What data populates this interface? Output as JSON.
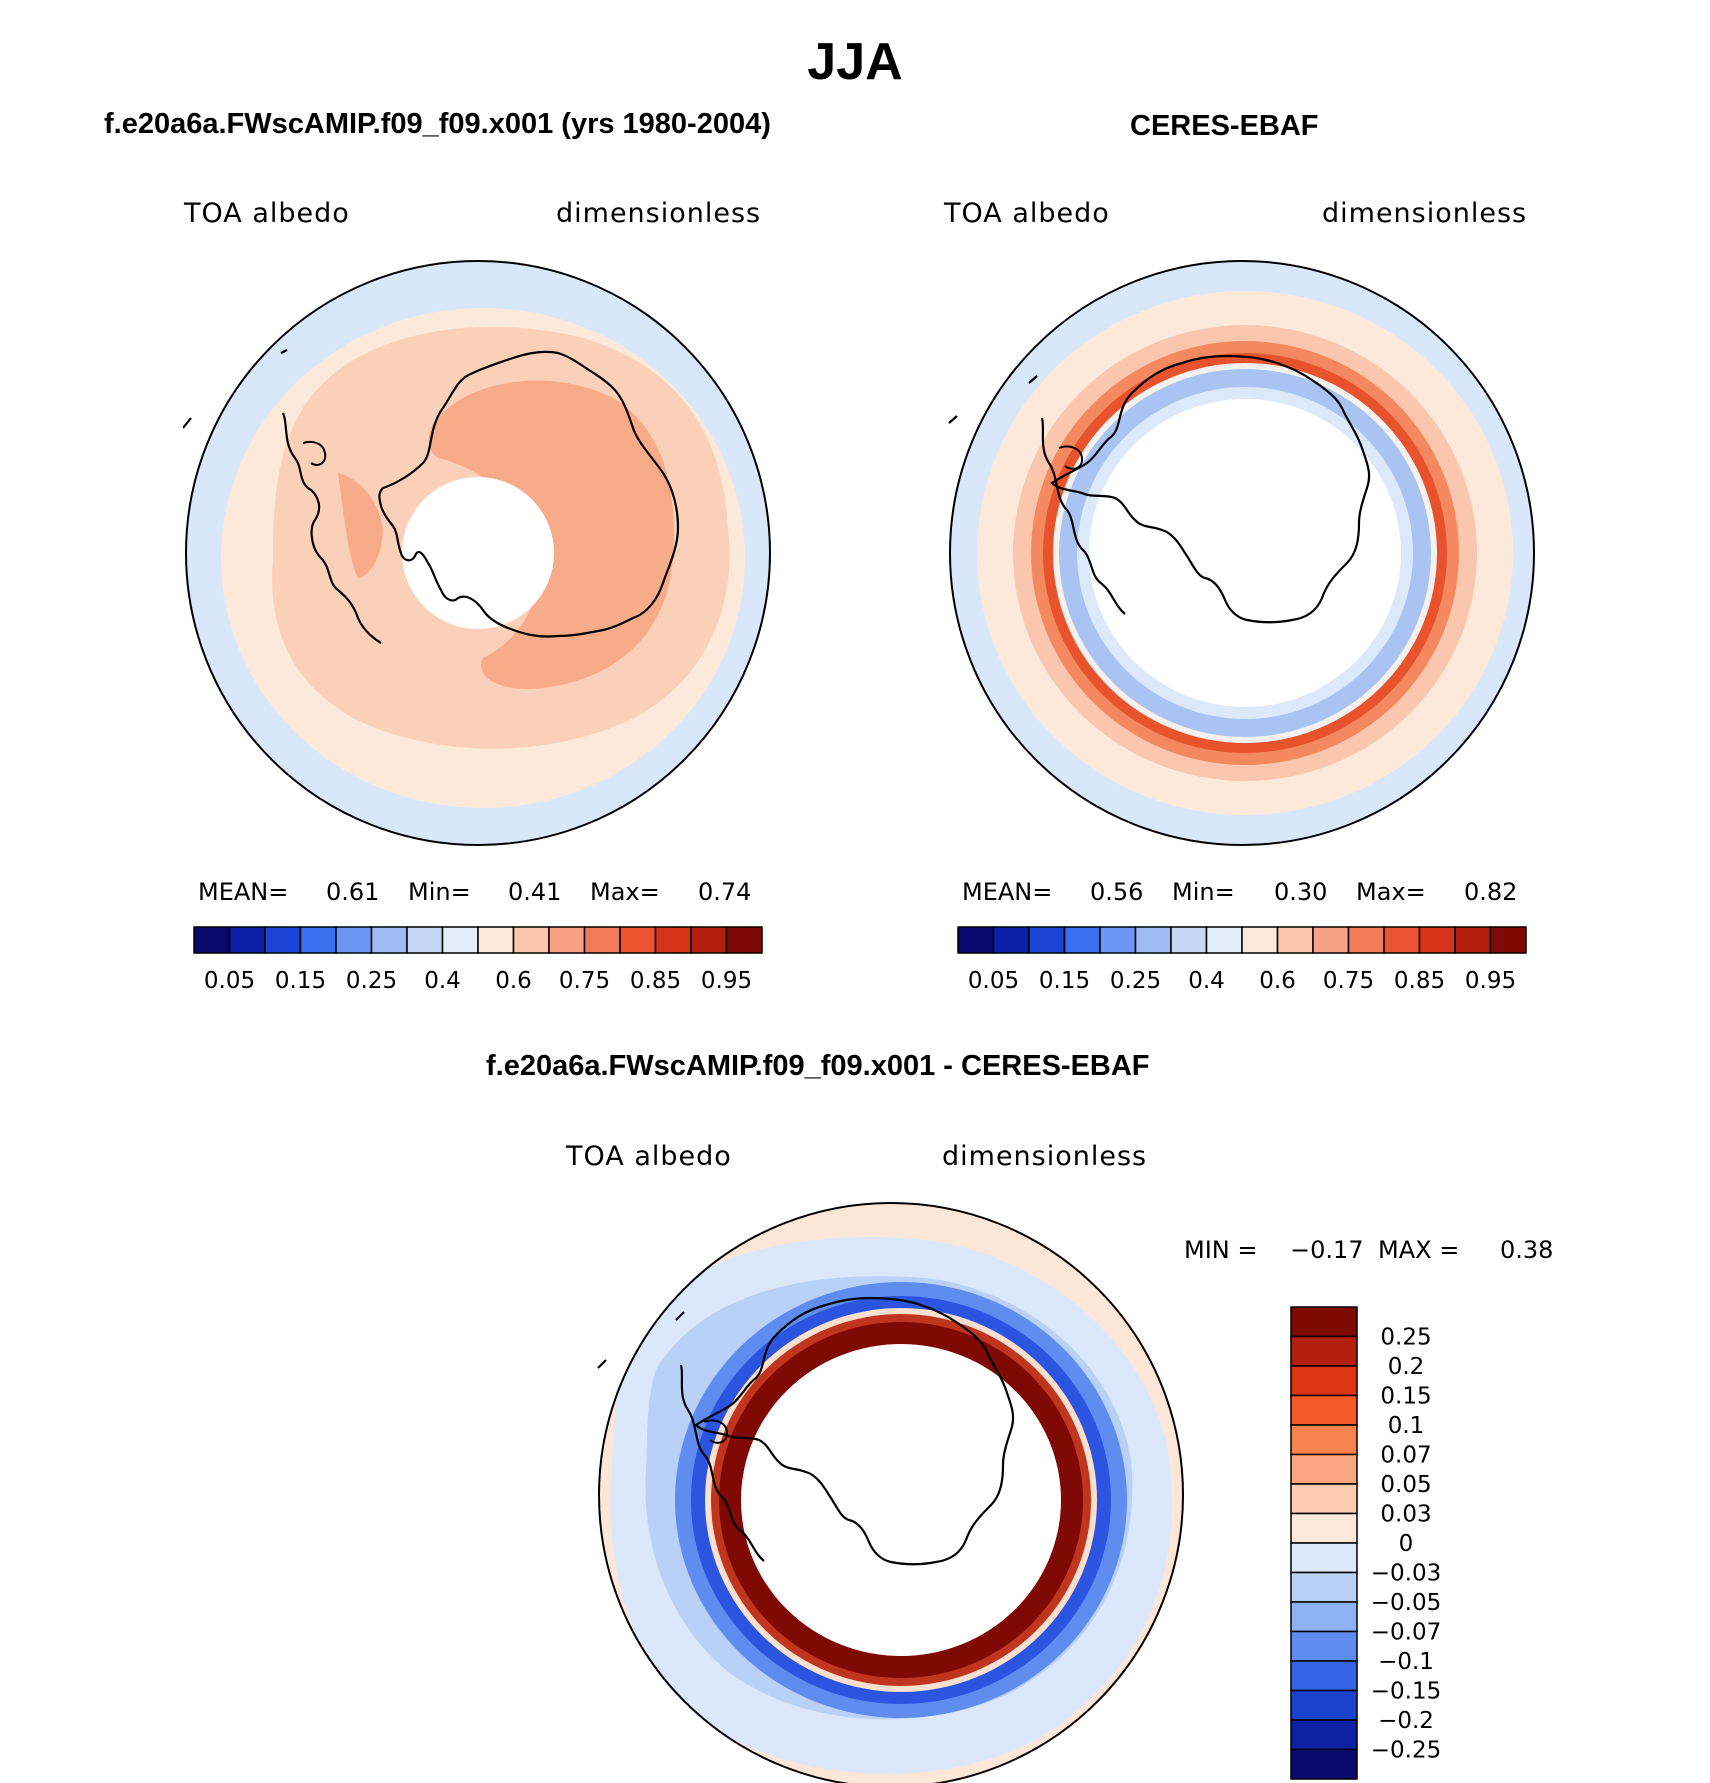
{
  "figure": {
    "season": "JJA"
  },
  "panels": [
    {
      "title": "f.e20a6a.FWscAMIP.f09_f09.x001 (yrs 1980-2004)",
      "variable": "TOA albedo",
      "units": "dimensionless",
      "stats": {
        "mean_label": "MEAN=",
        "mean": "0.61",
        "min_label": "Min=",
        "min": "0.41",
        "max_label": "Max=",
        "max": "0.74"
      },
      "colorbar": {
        "labels": [
          "0.05",
          "0.15",
          "0.25",
          "0.4",
          "0.6",
          "0.75",
          "0.85",
          "0.95"
        ],
        "colors": [
          "#08086e",
          "#0c1fa8",
          "#1a44d6",
          "#3a6ff0",
          "#6b97f2",
          "#9ebcf2",
          "#c4d8f5",
          "#e3eefb",
          "#fde8da",
          "#fbc6ae",
          "#f8a285",
          "#f27c57",
          "#ea5430",
          "#d5331a",
          "#b31e0d",
          "#7f0a05"
        ]
      },
      "map": {
        "ring_colors": [
          "#d8e8fa",
          "#fde9d9",
          "#fbd0b8",
          "#f8ab88"
        ]
      }
    },
    {
      "title": "CERES-EBAF",
      "variable": "TOA albedo",
      "units": "dimensionless",
      "stats": {
        "mean_label": "MEAN=",
        "mean": "0.56",
        "min_label": "Min=",
        "min": "0.30",
        "max_label": "Max=",
        "max": "0.82"
      },
      "colorbar": {
        "labels": [
          "0.05",
          "0.15",
          "0.25",
          "0.4",
          "0.6",
          "0.75",
          "0.85",
          "0.95"
        ],
        "colors": [
          "#08086e",
          "#0c1fa8",
          "#1a44d6",
          "#3a6ff0",
          "#6b97f2",
          "#9ebcf2",
          "#c4d8f5",
          "#e3eefb",
          "#fde8da",
          "#fbc6ae",
          "#f8a285",
          "#f27c57",
          "#ea5430",
          "#d5331a",
          "#b31e0d",
          "#7f0a05"
        ]
      },
      "map": {
        "ring_colors": [
          "#d8e8fa",
          "#fde9d9",
          "#fbc6ae",
          "#f4895f",
          "#e8532e",
          "#a9c4f2",
          "#dce9fb"
        ]
      }
    },
    {
      "title": "f.e20a6a.FWscAMIP.f09_f09.x001 - CERES-EBAF",
      "variable": "TOA albedo",
      "units": "dimensionless",
      "stats": {
        "min_label": "MIN =",
        "min": "−0.17",
        "max_label": "MAX =",
        "max": "0.38"
      },
      "colorbar": {
        "labels": [
          "0.25",
          "0.2",
          "0.15",
          "0.1",
          "0.07",
          "0.05",
          "0.03",
          "0",
          "−0.03",
          "−0.05",
          "−0.07",
          "−0.1",
          "−0.15",
          "−0.2",
          "−0.25"
        ],
        "colors": [
          "#7f0a05",
          "#b31e0d",
          "#dc3512",
          "#f45a28",
          "#f7834f",
          "#f9a57f",
          "#fccbb2",
          "#fde9d9",
          "#dbe8fb",
          "#b9d0f7",
          "#8eb1f3",
          "#5f8cef",
          "#3565e6",
          "#1a42cf",
          "#0c22a3",
          "#08086e"
        ]
      },
      "map": {
        "ring_colors": [
          "#dbe8fb",
          "#b9d0f7",
          "#5f8cef",
          "#2b55e0",
          "#fbe0d0",
          "#c0351e",
          "#7f0a05"
        ]
      }
    }
  ]
}
